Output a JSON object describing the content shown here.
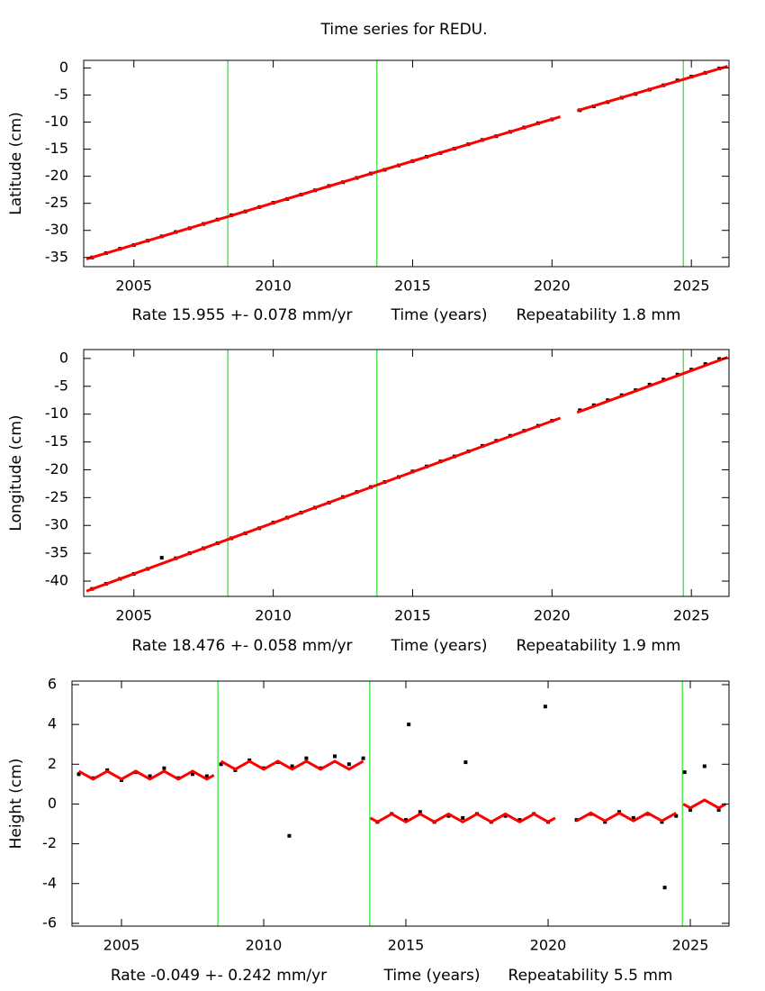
{
  "title": "Time series for REDU.",
  "chart_data": [
    {
      "type": "scatter",
      "ylabel": "Latitude (cm)",
      "xlabel": "Time (years)",
      "rate_label": "Rate 15.955 +- 0.078 mm/yr",
      "repeatability_label": "Repeatability 1.8 mm",
      "xlim": [
        2003.2,
        2026.35
      ],
      "ylim": [
        -36.7,
        1.4
      ],
      "xticks": [
        2005,
        2010,
        2015,
        2020,
        2025
      ],
      "yticks": [
        -35,
        -30,
        -25,
        -20,
        -15,
        -10,
        -5,
        0
      ],
      "breaks": [
        2008.37,
        2013.72,
        2024.71
      ],
      "break_color": "#00dd00",
      "series": [
        {
          "mode": "markers",
          "color": "#000000",
          "x": [
            2003.5,
            2004.0,
            2004.5,
            2005.0,
            2005.5,
            2006.0,
            2006.5,
            2007.0,
            2007.5,
            2008.0,
            2008.5,
            2009.0,
            2009.5,
            2010.0,
            2010.5,
            2011.0,
            2011.5,
            2012.0,
            2012.5,
            2013.0,
            2013.5,
            2014.0,
            2014.5,
            2015.0,
            2015.5,
            2016.0,
            2016.5,
            2017.0,
            2017.5,
            2018.0,
            2018.5,
            2019.0,
            2019.5,
            2020.0,
            2021.0,
            2021.5,
            2022.0,
            2022.5,
            2023.0,
            2023.5,
            2024.0,
            2024.5,
            2025.0,
            2025.5,
            2026.0
          ],
          "values": [
            -35.0,
            -34.2,
            -33.4,
            -32.7,
            -31.9,
            -31.1,
            -30.3,
            -29.6,
            -28.8,
            -28.0,
            -27.2,
            -26.5,
            -25.7,
            -24.9,
            -24.2,
            -23.4,
            -22.6,
            -21.8,
            -21.1,
            -20.3,
            -19.5,
            -18.8,
            -18.0,
            -17.2,
            -16.4,
            -15.7,
            -14.9,
            -14.1,
            -13.3,
            -12.6,
            -11.8,
            -11.0,
            -10.2,
            -9.5,
            -7.8,
            -7.1,
            -6.3,
            -5.5,
            -4.8,
            -4.0,
            -3.2,
            -2.3,
            -1.6,
            -0.9,
            -0.1
          ]
        },
        {
          "mode": "line",
          "color": "#ff0000",
          "x": [
            2003.3,
            2020.3,
            2020.6,
            2020.9,
            2026.3
          ],
          "values": [
            -35.3,
            -9.0,
            null,
            -7.9,
            0.3
          ]
        }
      ]
    },
    {
      "type": "scatter",
      "ylabel": "Longitude (cm)",
      "xlabel": "Time (years)",
      "rate_label": "Rate 18.476 +- 0.058 mm/yr",
      "repeatability_label": "Repeatability 1.9 mm",
      "xlim": [
        2003.2,
        2026.35
      ],
      "ylim": [
        -42.75,
        1.6
      ],
      "xticks": [
        2005,
        2010,
        2015,
        2020,
        2025
      ],
      "yticks": [
        -40,
        -35,
        -30,
        -25,
        -20,
        -15,
        -10,
        -5,
        0
      ],
      "breaks": [
        2008.37,
        2013.72,
        2024.71
      ],
      "break_color": "#00dd00",
      "series": [
        {
          "mode": "markers",
          "color": "#000000",
          "x": [
            2003.5,
            2004.0,
            2004.5,
            2005.0,
            2005.5,
            2006.0,
            2006.5,
            2007.0,
            2007.5,
            2008.0,
            2008.5,
            2009.0,
            2009.5,
            2010.0,
            2010.5,
            2011.0,
            2011.5,
            2012.0,
            2012.5,
            2013.0,
            2013.5,
            2014.0,
            2014.5,
            2015.0,
            2015.5,
            2016.0,
            2016.5,
            2017.0,
            2017.5,
            2018.0,
            2018.5,
            2019.0,
            2019.5,
            2020.0,
            2021.0,
            2021.5,
            2022.0,
            2022.5,
            2023.0,
            2023.5,
            2024.0,
            2024.5,
            2025.0,
            2025.5,
            2026.0
          ],
          "values": [
            -41.4,
            -40.5,
            -39.6,
            -38.7,
            -37.8,
            -35.8,
            -35.9,
            -35.0,
            -34.1,
            -33.2,
            -32.3,
            -31.4,
            -30.5,
            -29.5,
            -28.6,
            -27.7,
            -26.8,
            -25.9,
            -24.9,
            -24.0,
            -23.1,
            -22.2,
            -21.3,
            -20.3,
            -19.4,
            -18.5,
            -17.6,
            -16.7,
            -15.7,
            -14.8,
            -13.9,
            -13.0,
            -12.1,
            -11.2,
            -9.3,
            -8.4,
            -7.5,
            -6.6,
            -5.7,
            -4.7,
            -3.8,
            -2.9,
            -2.0,
            -1.0,
            -0.1
          ]
        },
        {
          "mode": "line",
          "color": "#ff0000",
          "x": [
            2003.3,
            2020.3,
            2020.6,
            2020.9,
            2026.3
          ],
          "values": [
            -41.8,
            -10.7,
            null,
            -9.7,
            0.2
          ]
        }
      ]
    },
    {
      "type": "scatter",
      "ylabel": "Height (cm)",
      "xlabel": "Time (years)",
      "rate_label": "Rate -0.049 +- 0.242 mm/yr",
      "repeatability_label": "Repeatability 5.5 mm",
      "xlim": [
        2003.26,
        2026.36
      ],
      "ylim": [
        -6.14,
        6.18
      ],
      "xticks": [
        2005,
        2010,
        2015,
        2020,
        2025
      ],
      "yticks": [
        -6,
        -4,
        -2,
        0,
        2,
        4,
        6
      ],
      "breaks": [
        2008.39,
        2013.73,
        2024.72
      ],
      "break_color": "#00dd00",
      "series": [
        {
          "mode": "markers",
          "color": "#000000",
          "x": [
            2003.5,
            2004.0,
            2004.5,
            2005.0,
            2005.5,
            2006.0,
            2006.5,
            2007.0,
            2007.5,
            2008.0,
            2008.5,
            2009.0,
            2009.5,
            2010.0,
            2010.5,
            2010.9,
            2011.0,
            2011.5,
            2012.0,
            2012.5,
            2013.0,
            2013.5,
            2014.0,
            2014.5,
            2015.0,
            2015.1,
            2015.5,
            2016.0,
            2016.5,
            2017.0,
            2017.1,
            2017.5,
            2018.0,
            2018.5,
            2019.0,
            2019.5,
            2019.9,
            2020.0,
            2021.0,
            2021.5,
            2022.0,
            2022.5,
            2023.0,
            2023.5,
            2024.0,
            2024.1,
            2024.5,
            2024.8,
            2025.0,
            2025.5,
            2026.0
          ],
          "values": [
            1.5,
            1.3,
            1.7,
            1.2,
            1.6,
            1.4,
            1.8,
            1.3,
            1.5,
            1.4,
            2.0,
            1.7,
            2.2,
            1.8,
            2.1,
            -1.6,
            1.9,
            2.3,
            1.8,
            2.4,
            2.0,
            2.3,
            -0.9,
            -0.5,
            -0.8,
            4.0,
            -0.4,
            -0.9,
            -0.6,
            -0.7,
            2.1,
            -0.5,
            -0.9,
            -0.6,
            -0.8,
            -0.5,
            4.9,
            -0.9,
            -0.8,
            -0.5,
            -0.9,
            -0.4,
            -0.7,
            -0.5,
            -0.9,
            -4.2,
            -0.6,
            1.6,
            -0.3,
            1.9,
            -0.3
          ]
        },
        {
          "mode": "line",
          "color": "#ff0000",
          "x": [
            2003.5,
            2003.75,
            2004.0,
            2004.25,
            2004.5,
            2004.75,
            2005.0,
            2005.25,
            2005.5,
            2005.75,
            2006.0,
            2006.25,
            2006.5,
            2006.75,
            2007.0,
            2007.25,
            2007.5,
            2007.75,
            2008.0,
            2008.25,
            2008.39,
            2008.5,
            2008.75,
            2009.0,
            2009.25,
            2009.5,
            2009.75,
            2010.0,
            2010.25,
            2010.5,
            2010.75,
            2011.0,
            2011.25,
            2011.5,
            2011.75,
            2012.0,
            2012.25,
            2012.5,
            2012.75,
            2013.0,
            2013.25,
            2013.5,
            2013.73,
            2013.75,
            2014.0,
            2014.25,
            2014.5,
            2014.75,
            2015.0,
            2015.25,
            2015.5,
            2015.75,
            2016.0,
            2016.25,
            2016.5,
            2016.75,
            2017.0,
            2017.25,
            2017.5,
            2017.75,
            2018.0,
            2018.25,
            2018.5,
            2018.75,
            2019.0,
            2019.25,
            2019.5,
            2019.75,
            2020.0,
            2020.25,
            2020.6,
            2021.0,
            2021.25,
            2021.5,
            2021.75,
            2022.0,
            2022.25,
            2022.5,
            2022.75,
            2023.0,
            2023.25,
            2023.5,
            2023.75,
            2024.0,
            2024.25,
            2024.5,
            2024.72,
            2024.75,
            2025.0,
            2025.25,
            2025.5,
            2025.75,
            2026.0,
            2026.25
          ],
          "values": [
            1.65,
            1.45,
            1.25,
            1.45,
            1.65,
            1.45,
            1.25,
            1.45,
            1.65,
            1.45,
            1.25,
            1.45,
            1.65,
            1.45,
            1.25,
            1.45,
            1.65,
            1.45,
            1.25,
            1.45,
            null,
            2.15,
            1.95,
            1.75,
            1.95,
            2.15,
            1.95,
            1.75,
            1.95,
            2.15,
            1.95,
            1.75,
            1.95,
            2.15,
            1.95,
            1.75,
            1.95,
            2.15,
            1.95,
            1.75,
            1.95,
            2.15,
            null,
            -0.7,
            -0.9,
            -0.7,
            -0.5,
            -0.7,
            -0.9,
            -0.7,
            -0.5,
            -0.7,
            -0.9,
            -0.7,
            -0.5,
            -0.7,
            -0.9,
            -0.7,
            -0.5,
            -0.7,
            -0.9,
            -0.7,
            -0.5,
            -0.7,
            -0.9,
            -0.7,
            -0.5,
            -0.7,
            -0.9,
            -0.7,
            null,
            -0.85,
            -0.65,
            -0.45,
            -0.65,
            -0.85,
            -0.65,
            -0.45,
            -0.65,
            -0.85,
            -0.65,
            -0.45,
            -0.65,
            -0.85,
            -0.65,
            -0.45,
            null,
            0.0,
            -0.2,
            0.0,
            0.2,
            0.0,
            -0.2,
            0.0
          ]
        }
      ]
    }
  ]
}
